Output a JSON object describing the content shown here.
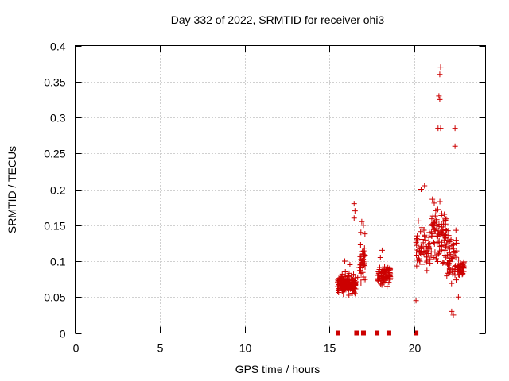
{
  "chart_data": {
    "type": "scatter",
    "title": "Day 332 of 2022, SRMTID for receiver ohi3",
    "xlabel": "GPS time / hours",
    "ylabel": "SRMTID / TECUs",
    "xlim": [
      0,
      24.2
    ],
    "ylim": [
      0,
      0.4
    ],
    "xticks": [
      0,
      5,
      10,
      15,
      20
    ],
    "xtick_labels": [
      "0",
      "5",
      "10",
      "15",
      "20"
    ],
    "yticks": [
      0,
      0.05,
      0.1,
      0.15,
      0.2,
      0.25,
      0.3,
      0.35,
      0.4
    ],
    "ytick_labels": [
      "0",
      "0.05",
      "0.1",
      "0.15",
      "0.2",
      "0.25",
      "0.3",
      "0.35",
      "0.4"
    ],
    "grid": true,
    "marker": "+",
    "series_color": "#cc0000",
    "zero_markers": {
      "marker": "square",
      "x": [
        15.5,
        16.6,
        17.0,
        17.8,
        18.5,
        20.1
      ]
    },
    "clusters": [
      {
        "x_range": [
          15.45,
          16.55
        ],
        "y_center": 0.068,
        "y_spread": 0.022,
        "count": 150,
        "outliers": [
          [
            16.45,
            0.18
          ],
          [
            16.5,
            0.17
          ],
          [
            16.45,
            0.16
          ],
          [
            15.9,
            0.1
          ],
          [
            16.2,
            0.095
          ]
        ]
      },
      {
        "x_range": [
          16.65,
          17.1
        ],
        "y_center": 0.1,
        "y_spread": 0.05,
        "count": 40,
        "outliers": [
          [
            16.9,
            0.155
          ],
          [
            16.85,
            0.14
          ],
          [
            17.0,
            0.15
          ]
        ]
      },
      {
        "x_range": [
          17.8,
          18.6
        ],
        "y_center": 0.08,
        "y_spread": 0.018,
        "count": 75,
        "outliers": [
          [
            18.1,
            0.115
          ],
          [
            18.0,
            0.105
          ]
        ]
      },
      {
        "x_range": [
          20.1,
          21.0
        ],
        "y_center": 0.12,
        "y_spread": 0.04,
        "count": 60,
        "outliers": [
          [
            20.1,
            0.045
          ],
          [
            20.4,
            0.2
          ],
          [
            20.6,
            0.205
          ]
        ]
      },
      {
        "x_range": [
          21.0,
          21.9
        ],
        "y_center": 0.14,
        "y_spread": 0.06,
        "count": 90,
        "outliers": [
          [
            21.5,
            0.36
          ],
          [
            21.55,
            0.37
          ],
          [
            21.45,
            0.33
          ],
          [
            21.5,
            0.325
          ],
          [
            21.4,
            0.285
          ],
          [
            21.55,
            0.285
          ]
        ]
      },
      {
        "x_range": [
          21.9,
          22.5
        ],
        "y_center": 0.11,
        "y_spread": 0.05,
        "count": 55,
        "outliers": [
          [
            22.4,
            0.285
          ],
          [
            22.4,
            0.26
          ],
          [
            22.3,
            0.025
          ],
          [
            22.2,
            0.03
          ]
        ]
      },
      {
        "x_range": [
          22.5,
          22.95
        ],
        "y_center": 0.09,
        "y_spread": 0.015,
        "count": 40,
        "outliers": [
          [
            22.6,
            0.05
          ]
        ]
      }
    ]
  }
}
